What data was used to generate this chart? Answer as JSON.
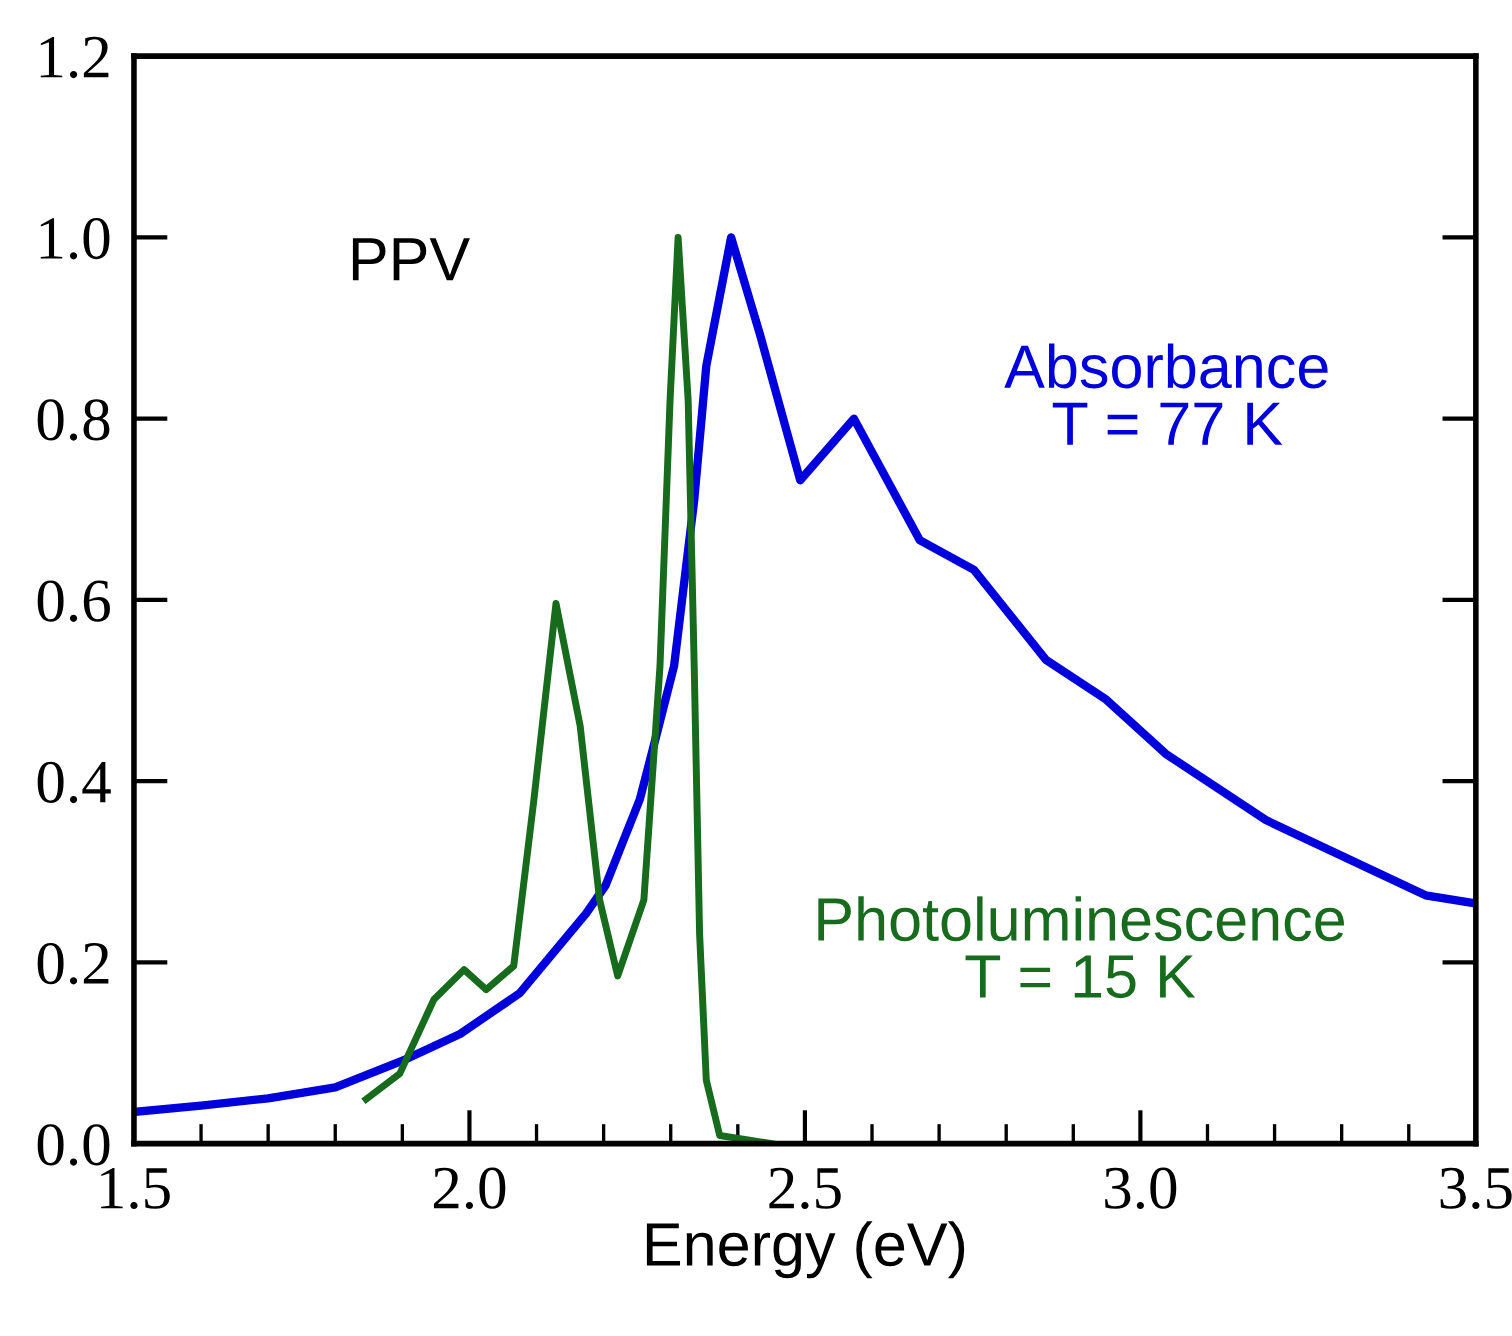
{
  "chart_data": {
    "type": "line",
    "xlabel": "Energy (eV)",
    "xlim": [
      1.5,
      3.5
    ],
    "xticks": [
      {
        "value": 1.5,
        "label": "1.5"
      },
      {
        "value": 2.0,
        "label": "2.0"
      },
      {
        "value": 2.5,
        "label": "2.5"
      },
      {
        "value": 3.0,
        "label": "3.0"
      },
      {
        "value": 3.5,
        "label": "3.5"
      }
    ],
    "ylim": [
      0,
      1.2
    ],
    "yticks": [
      {
        "value": 0,
        "label": "0.0"
      },
      {
        "value": 0.2,
        "label": "0.2"
      },
      {
        "value": 0.4,
        "label": "0.4"
      },
      {
        "value": 0.6,
        "label": "0.6"
      },
      {
        "value": 0.8,
        "label": "0.8"
      },
      {
        "value": 1.0,
        "label": "1.0"
      },
      {
        "value": 1.2,
        "label": "1.2"
      }
    ],
    "grid": false,
    "legend": false,
    "marker": "none",
    "line_style": "solid",
    "annotations": [
      "PPV"
    ],
    "series": [
      {
        "name": "Absorbance\nT = 77 K",
        "color": "#0000dd",
        "x": [
          1.5,
          1.6,
          1.7,
          1.8,
          1.905,
          1.986,
          2.075,
          2.174,
          2.203,
          2.254,
          2.275,
          2.305,
          2.323,
          2.335,
          2.353,
          2.39,
          2.433,
          2.493,
          2.573,
          2.671,
          2.752,
          2.859,
          2.949,
          3.038,
          3.187,
          3.425,
          3.5
        ],
        "values": [
          0.035,
          0.042,
          0.05,
          0.062,
          0.093,
          0.121,
          0.166,
          0.254,
          0.285,
          0.38,
          0.44,
          0.527,
          0.637,
          0.71,
          0.858,
          1.0,
          0.893,
          0.732,
          0.8,
          0.666,
          0.633,
          0.534,
          0.49,
          0.43,
          0.357,
          0.274,
          0.265
        ]
      },
      {
        "name": "Photoluminescence\nT = 15 K",
        "color": "#176b1d",
        "x": [
          1.846,
          1.896,
          1.947,
          1.992,
          2.025,
          2.066,
          2.096,
          2.129,
          2.165,
          2.194,
          2.221,
          2.26,
          2.284,
          2.299,
          2.311,
          2.326,
          2.335,
          2.343,
          2.353,
          2.373,
          2.45
        ],
        "values": [
          0.049,
          0.077,
          0.159,
          0.192,
          0.17,
          0.196,
          0.379,
          0.596,
          0.461,
          0.269,
          0.185,
          0.269,
          0.527,
          0.82,
          1.0,
          0.82,
          0.527,
          0.232,
          0.07,
          0.009,
          0.0
        ]
      }
    ]
  }
}
